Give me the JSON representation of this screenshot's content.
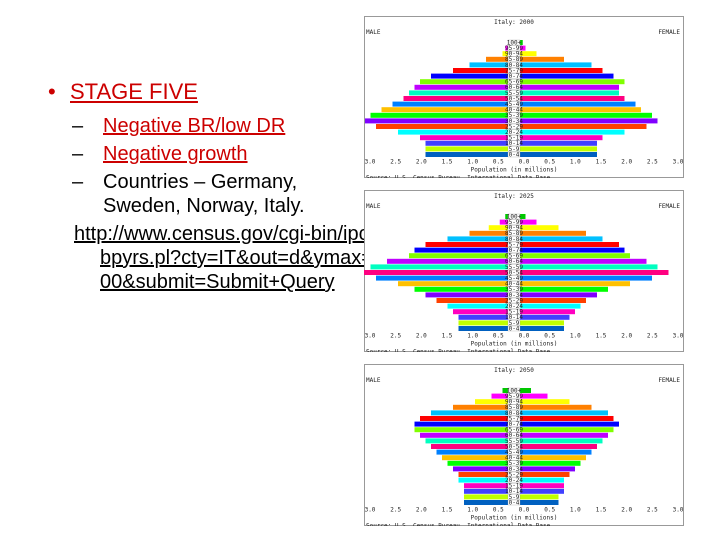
{
  "slide": {
    "bullet_main": "STAGE FIVE",
    "sub_bullets": [
      "Negative BR/low DR",
      "Negative growth",
      "Countries – Germany, Sweden, Norway, Italy."
    ],
    "link_text": "http://www.census.gov/cgi-bin/ipc/idbpyrs.pl?cty=IT&out=d&ymax=300&submit=Submit+Query"
  },
  "pyramids": [
    {
      "title": "Italy: 2000"
    },
    {
      "title": "Italy: 2025"
    },
    {
      "title": "Italy: 2050"
    }
  ],
  "pyramid_common": {
    "left_label": "MALE",
    "right_label": "FEMALE",
    "axis_ticks": [
      "3.0",
      "2.5",
      "2.0",
      "1.5",
      "1.0",
      "0.5",
      "0.0",
      "0.5",
      "1.0",
      "1.5",
      "2.0",
      "2.5",
      "3.0"
    ],
    "xlabel": "Population (in millions)",
    "source": "Source: U.S. Census Bureau, International Data Base.",
    "age_labels": [
      "100+",
      "95-99",
      "90-94",
      "85-89",
      "80-84",
      "75-79",
      "70-74",
      "65-69",
      "60-64",
      "55-59",
      "50-54",
      "45-49",
      "40-44",
      "35-39",
      "30-34",
      "25-29",
      "20-24",
      "15-19",
      "10-14",
      "5-9",
      "0-4"
    ]
  },
  "chart_data": [
    {
      "type": "bar",
      "title": "Italy: 2000",
      "categories": [
        "100+",
        "95-99",
        "90-94",
        "85-89",
        "80-84",
        "75-79",
        "70-74",
        "65-69",
        "60-64",
        "55-59",
        "50-54",
        "45-49",
        "40-44",
        "35-39",
        "30-34",
        "25-29",
        "20-24",
        "15-19",
        "10-14",
        "5-9",
        "0-4"
      ],
      "series": [
        {
          "name": "MALE",
          "values": [
            0.0,
            0.05,
            0.1,
            0.4,
            0.7,
            1.0,
            1.4,
            1.6,
            1.7,
            1.8,
            1.9,
            2.1,
            2.3,
            2.5,
            2.6,
            2.4,
            2.0,
            1.6,
            1.5,
            1.5,
            1.5
          ]
        },
        {
          "name": "FEMALE",
          "values": [
            0.05,
            0.1,
            0.3,
            0.8,
            1.3,
            1.5,
            1.7,
            1.9,
            1.8,
            1.8,
            1.9,
            2.1,
            2.2,
            2.4,
            2.5,
            2.3,
            1.9,
            1.5,
            1.4,
            1.4,
            1.4
          ]
        }
      ],
      "xlabel": "Population (in millions)",
      "xlim": [
        -3.0,
        3.0
      ]
    },
    {
      "type": "bar",
      "title": "Italy: 2025",
      "categories": [
        "100+",
        "95-99",
        "90-94",
        "85-89",
        "80-84",
        "75-79",
        "70-74",
        "65-69",
        "60-64",
        "55-59",
        "50-54",
        "45-49",
        "40-44",
        "35-39",
        "30-34",
        "25-29",
        "20-24",
        "15-19",
        "10-14",
        "5-9",
        "0-4"
      ],
      "series": [
        {
          "name": "MALE",
          "values": [
            0.05,
            0.15,
            0.35,
            0.7,
            1.1,
            1.5,
            1.7,
            1.8,
            2.2,
            2.5,
            2.7,
            2.4,
            2.0,
            1.7,
            1.5,
            1.3,
            1.1,
            1.0,
            0.9,
            0.9,
            0.9
          ]
        },
        {
          "name": "FEMALE",
          "values": [
            0.1,
            0.3,
            0.7,
            1.2,
            1.5,
            1.8,
            1.9,
            2.0,
            2.3,
            2.5,
            2.7,
            2.4,
            2.0,
            1.6,
            1.4,
            1.2,
            1.1,
            1.0,
            0.9,
            0.8,
            0.8
          ]
        }
      ],
      "xlabel": "Population (in millions)",
      "xlim": [
        -3.0,
        3.0
      ]
    },
    {
      "type": "bar",
      "title": "Italy: 2050",
      "categories": [
        "100+",
        "95-99",
        "90-94",
        "85-89",
        "80-84",
        "75-79",
        "70-74",
        "65-69",
        "60-64",
        "55-59",
        "50-54",
        "45-49",
        "40-44",
        "35-39",
        "30-34",
        "25-29",
        "20-24",
        "15-19",
        "10-14",
        "5-9",
        "0-4"
      ],
      "series": [
        {
          "name": "MALE",
          "values": [
            0.1,
            0.3,
            0.6,
            1.0,
            1.4,
            1.6,
            1.7,
            1.7,
            1.6,
            1.5,
            1.4,
            1.3,
            1.2,
            1.1,
            1.0,
            0.9,
            0.9,
            0.8,
            0.8,
            0.8,
            0.8
          ]
        },
        {
          "name": "FEMALE",
          "values": [
            0.2,
            0.5,
            0.9,
            1.3,
            1.6,
            1.7,
            1.8,
            1.7,
            1.6,
            1.5,
            1.4,
            1.3,
            1.2,
            1.1,
            1.0,
            0.9,
            0.8,
            0.8,
            0.8,
            0.7,
            0.7
          ]
        }
      ],
      "xlabel": "Population (in millions)",
      "xlim": [
        -3.0,
        3.0
      ]
    }
  ]
}
